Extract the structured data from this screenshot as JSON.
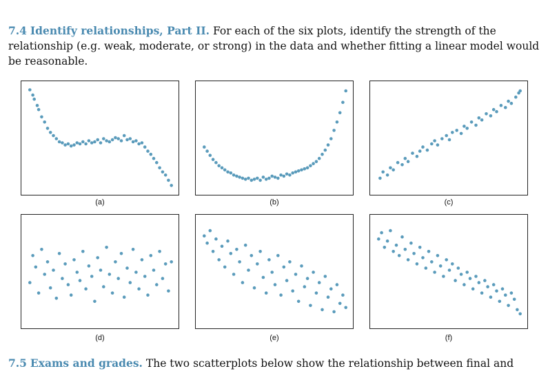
{
  "problem": {
    "number": "7.4",
    "title": "Identify relationships, Part II.",
    "text": "For each of the six plots, identify the strength of the relationship (e.g. weak, moderate, or strong) in the data and whether fitting a linear model would be reasonable."
  },
  "colors": {
    "point": "#5a9bbb",
    "heading": "#4a8ab0",
    "frame": "#222222"
  },
  "chart_data": [
    {
      "type": "scatter",
      "label": "(a)",
      "x": [
        0.02,
        0.04,
        0.05,
        0.07,
        0.08,
        0.1,
        0.12,
        0.14,
        0.16,
        0.18,
        0.2,
        0.22,
        0.24,
        0.26,
        0.28,
        0.3,
        0.32,
        0.34,
        0.36,
        0.38,
        0.4,
        0.42,
        0.44,
        0.46,
        0.48,
        0.5,
        0.52,
        0.54,
        0.56,
        0.58,
        0.6,
        0.62,
        0.64,
        0.66,
        0.68,
        0.7,
        0.72,
        0.74,
        0.76,
        0.78,
        0.8,
        0.82,
        0.84,
        0.86,
        0.88,
        0.9,
        0.92,
        0.94,
        0.96,
        0.98
      ],
      "y": [
        0.97,
        0.92,
        0.88,
        0.82,
        0.78,
        0.71,
        0.66,
        0.6,
        0.56,
        0.53,
        0.5,
        0.47,
        0.46,
        0.44,
        0.45,
        0.43,
        0.44,
        0.46,
        0.45,
        0.47,
        0.45,
        0.48,
        0.46,
        0.47,
        0.49,
        0.46,
        0.5,
        0.48,
        0.47,
        0.49,
        0.51,
        0.5,
        0.48,
        0.53,
        0.49,
        0.5,
        0.47,
        0.48,
        0.45,
        0.46,
        0.42,
        0.38,
        0.35,
        0.31,
        0.27,
        0.22,
        0.18,
        0.15,
        0.1,
        0.05
      ]
    },
    {
      "type": "scatter",
      "label": "(b)",
      "x": [
        0.02,
        0.04,
        0.06,
        0.08,
        0.1,
        0.12,
        0.14,
        0.16,
        0.18,
        0.2,
        0.22,
        0.24,
        0.26,
        0.28,
        0.3,
        0.32,
        0.34,
        0.36,
        0.38,
        0.4,
        0.42,
        0.44,
        0.46,
        0.48,
        0.5,
        0.52,
        0.54,
        0.56,
        0.58,
        0.6,
        0.62,
        0.64,
        0.66,
        0.68,
        0.7,
        0.72,
        0.74,
        0.76,
        0.78,
        0.8,
        0.82,
        0.84,
        0.86,
        0.88,
        0.9,
        0.92,
        0.94,
        0.96,
        0.98
      ],
      "y": [
        0.42,
        0.38,
        0.34,
        0.3,
        0.27,
        0.24,
        0.22,
        0.2,
        0.18,
        0.17,
        0.15,
        0.14,
        0.13,
        0.12,
        0.11,
        0.12,
        0.1,
        0.11,
        0.12,
        0.1,
        0.13,
        0.11,
        0.12,
        0.14,
        0.13,
        0.12,
        0.15,
        0.14,
        0.16,
        0.15,
        0.17,
        0.18,
        0.19,
        0.2,
        0.21,
        0.22,
        0.24,
        0.26,
        0.28,
        0.31,
        0.35,
        0.39,
        0.44,
        0.5,
        0.58,
        0.66,
        0.75,
        0.85,
        0.96
      ]
    },
    {
      "type": "scatter",
      "label": "(c)",
      "x": [
        0.03,
        0.05,
        0.08,
        0.1,
        0.12,
        0.15,
        0.18,
        0.2,
        0.22,
        0.25,
        0.28,
        0.3,
        0.32,
        0.35,
        0.38,
        0.4,
        0.42,
        0.45,
        0.48,
        0.5,
        0.52,
        0.55,
        0.58,
        0.6,
        0.62,
        0.65,
        0.68,
        0.7,
        0.72,
        0.75,
        0.78,
        0.8,
        0.82,
        0.85,
        0.88,
        0.9,
        0.92,
        0.95,
        0.97,
        0.98
      ],
      "y": [
        0.12,
        0.18,
        0.15,
        0.22,
        0.2,
        0.27,
        0.25,
        0.31,
        0.28,
        0.36,
        0.33,
        0.38,
        0.42,
        0.39,
        0.45,
        0.48,
        0.44,
        0.5,
        0.53,
        0.49,
        0.56,
        0.58,
        0.55,
        0.62,
        0.6,
        0.66,
        0.63,
        0.7,
        0.68,
        0.74,
        0.72,
        0.78,
        0.76,
        0.82,
        0.8,
        0.86,
        0.84,
        0.9,
        0.94,
        0.96
      ]
    },
    {
      "type": "scatter",
      "label": "(d)",
      "x": [
        0.02,
        0.04,
        0.06,
        0.08,
        0.1,
        0.12,
        0.14,
        0.16,
        0.18,
        0.2,
        0.22,
        0.24,
        0.26,
        0.28,
        0.3,
        0.32,
        0.34,
        0.36,
        0.38,
        0.4,
        0.42,
        0.44,
        0.46,
        0.48,
        0.5,
        0.52,
        0.54,
        0.56,
        0.58,
        0.6,
        0.62,
        0.64,
        0.66,
        0.68,
        0.7,
        0.72,
        0.74,
        0.76,
        0.78,
        0.8,
        0.82,
        0.84,
        0.86,
        0.88,
        0.9,
        0.92,
        0.94,
        0.96,
        0.98
      ],
      "y": [
        0.4,
        0.66,
        0.55,
        0.3,
        0.72,
        0.48,
        0.6,
        0.35,
        0.52,
        0.25,
        0.68,
        0.44,
        0.58,
        0.38,
        0.28,
        0.62,
        0.5,
        0.42,
        0.7,
        0.34,
        0.56,
        0.46,
        0.22,
        0.64,
        0.52,
        0.36,
        0.74,
        0.48,
        0.3,
        0.6,
        0.44,
        0.68,
        0.26,
        0.54,
        0.4,
        0.72,
        0.5,
        0.34,
        0.62,
        0.46,
        0.28,
        0.66,
        0.52,
        0.38,
        0.7,
        0.44,
        0.58,
        0.32,
        0.6
      ]
    },
    {
      "type": "scatter",
      "label": "(e)",
      "x": [
        0.02,
        0.04,
        0.06,
        0.08,
        0.1,
        0.12,
        0.14,
        0.16,
        0.18,
        0.2,
        0.22,
        0.24,
        0.26,
        0.28,
        0.3,
        0.32,
        0.34,
        0.36,
        0.38,
        0.4,
        0.42,
        0.44,
        0.46,
        0.48,
        0.5,
        0.52,
        0.54,
        0.56,
        0.58,
        0.6,
        0.62,
        0.64,
        0.66,
        0.68,
        0.7,
        0.72,
        0.74,
        0.76,
        0.78,
        0.8,
        0.82,
        0.84,
        0.86,
        0.88,
        0.9,
        0.92,
        0.94,
        0.96,
        0.98
      ],
      "y": [
        0.85,
        0.78,
        0.9,
        0.7,
        0.82,
        0.62,
        0.75,
        0.55,
        0.8,
        0.68,
        0.48,
        0.72,
        0.6,
        0.4,
        0.76,
        0.52,
        0.66,
        0.35,
        0.58,
        0.7,
        0.45,
        0.3,
        0.62,
        0.5,
        0.38,
        0.66,
        0.28,
        0.55,
        0.42,
        0.6,
        0.32,
        0.48,
        0.22,
        0.56,
        0.36,
        0.44,
        0.18,
        0.5,
        0.3,
        0.4,
        0.14,
        0.46,
        0.26,
        0.34,
        0.12,
        0.38,
        0.2,
        0.28,
        0.16
      ]
    },
    {
      "type": "scatter",
      "label": "(f)",
      "x": [
        0.02,
        0.04,
        0.06,
        0.08,
        0.1,
        0.12,
        0.14,
        0.16,
        0.18,
        0.2,
        0.22,
        0.24,
        0.26,
        0.28,
        0.3,
        0.32,
        0.34,
        0.36,
        0.38,
        0.4,
        0.42,
        0.44,
        0.46,
        0.48,
        0.5,
        0.52,
        0.54,
        0.56,
        0.58,
        0.6,
        0.62,
        0.64,
        0.66,
        0.68,
        0.7,
        0.72,
        0.74,
        0.76,
        0.78,
        0.8,
        0.82,
        0.84,
        0.86,
        0.88,
        0.9,
        0.92,
        0.94,
        0.96,
        0.98
      ],
      "y": [
        0.82,
        0.88,
        0.74,
        0.8,
        0.9,
        0.7,
        0.76,
        0.66,
        0.84,
        0.72,
        0.62,
        0.78,
        0.68,
        0.58,
        0.74,
        0.64,
        0.54,
        0.7,
        0.6,
        0.5,
        0.66,
        0.56,
        0.46,
        0.62,
        0.52,
        0.58,
        0.42,
        0.54,
        0.48,
        0.38,
        0.5,
        0.44,
        0.34,
        0.46,
        0.4,
        0.3,
        0.42,
        0.36,
        0.26,
        0.38,
        0.32,
        0.22,
        0.34,
        0.28,
        0.18,
        0.3,
        0.24,
        0.14,
        0.1
      ]
    }
  ],
  "next_problem": {
    "number": "7.5",
    "title": "Exams and grades.",
    "text": "The two scatterplots below show the relationship between final and"
  }
}
